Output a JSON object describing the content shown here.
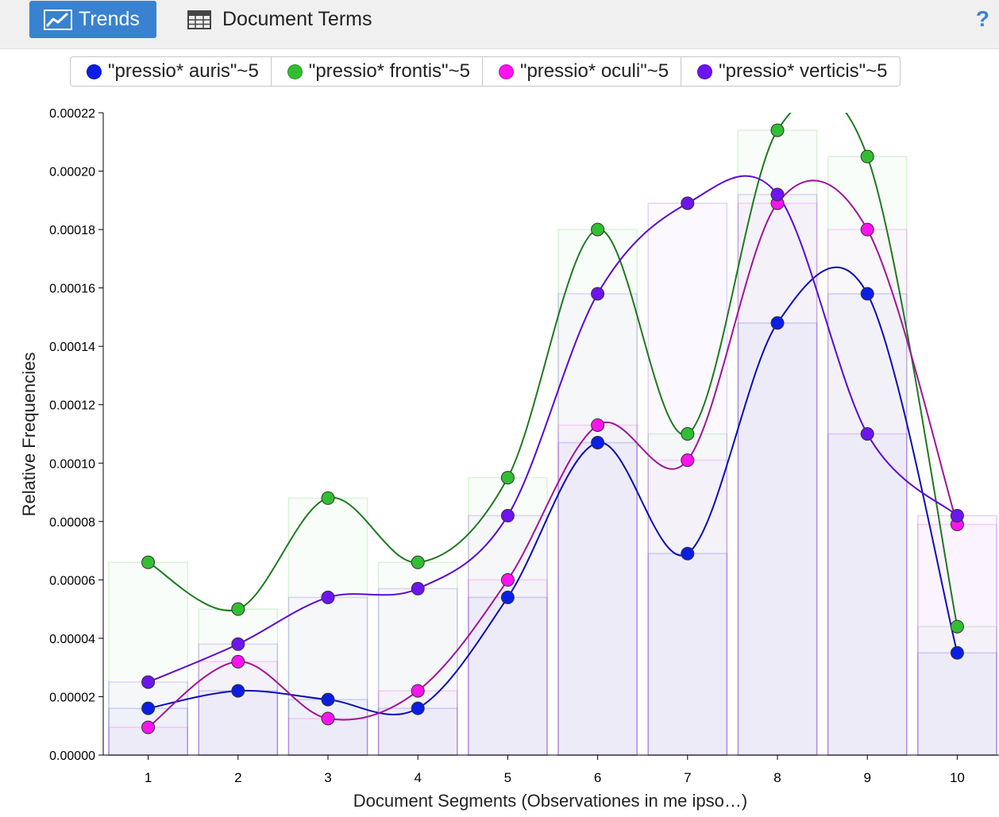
{
  "toolbar": {
    "tabs": [
      {
        "label": "Trends",
        "icon": "line-chart-icon",
        "active": true
      },
      {
        "label": "Document Terms",
        "icon": "table-icon",
        "active": false
      }
    ],
    "help_label": "?"
  },
  "colors": {
    "toolbar_bg": "#f0f0f0",
    "active_tab": "#3a82cf"
  },
  "chart_data": {
    "type": "line",
    "xlabel": "Document Segments (Observationes in me ipso…)",
    "ylabel": "Relative Frequencies",
    "categories": [
      "1",
      "2",
      "3",
      "4",
      "5",
      "6",
      "7",
      "8",
      "9",
      "10"
    ],
    "ylim": [
      0,
      0.00022
    ],
    "yticks": [
      "0.00000",
      "0.00002",
      "0.00004",
      "0.00006",
      "0.00008",
      "0.00010",
      "0.00012",
      "0.00014",
      "0.00016",
      "0.00018",
      "0.00020",
      "0.00022"
    ],
    "grid": false,
    "legend_position": "top",
    "series": [
      {
        "name": "\"pressio* auris\"~5",
        "color": "#0a1ee6",
        "line": "#0d0db4",
        "values": [
          1.6e-05,
          2.2e-05,
          1.9e-05,
          1.6e-05,
          5.4e-05,
          0.000107,
          6.9e-05,
          0.000148,
          0.000158,
          3.5e-05
        ]
      },
      {
        "name": "\"pressio* frontis\"~5",
        "color": "#32be32",
        "line": "#1e7a1e",
        "values": [
          6.6e-05,
          5e-05,
          8.8e-05,
          6.6e-05,
          9.5e-05,
          0.00018,
          0.00011,
          0.000214,
          0.000205,
          4.4e-05
        ]
      },
      {
        "name": "\"pressio* oculi\"~5",
        "color": "#ff14f0",
        "line": "#a0149a",
        "values": [
          9.5e-06,
          3.2e-05,
          1.25e-05,
          2.2e-05,
          6e-05,
          0.000113,
          0.000101,
          0.000189,
          0.00018,
          7.9e-05
        ]
      },
      {
        "name": "\"pressio* verticis\"~5",
        "color": "#6e14f0",
        "line": "#5a0ad2",
        "values": [
          2.5e-05,
          3.8e-05,
          5.4e-05,
          5.7e-05,
          8.2e-05,
          0.000158,
          0.000189,
          0.000192,
          0.00011,
          8.2e-05
        ]
      }
    ]
  }
}
